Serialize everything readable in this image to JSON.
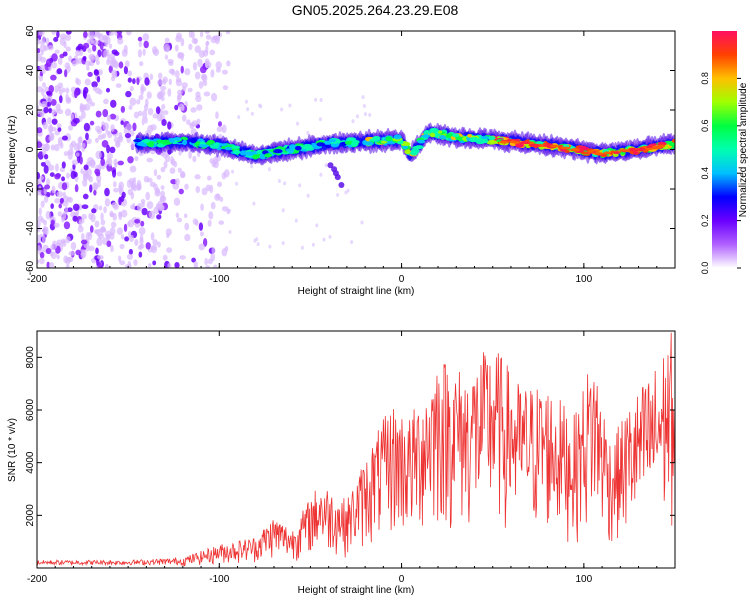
{
  "page": {
    "title": "GN05.2025.264.23.29.E08"
  },
  "chart_data": [
    {
      "type": "heatmap",
      "xlabel": "Height of straight line (km)",
      "ylabel": "Frequency (Hz)",
      "xlim": [
        -200,
        150
      ],
      "ylim": [
        -60,
        60
      ],
      "x_ticks": [
        -200,
        -100,
        0,
        100
      ],
      "y_ticks": [
        -60,
        -40,
        -20,
        0,
        20,
        40,
        60
      ],
      "colorbar": {
        "label": "Normalized spectral amplitude",
        "range": [
          0,
          1
        ],
        "ticks": [
          "0.0",
          "0.2",
          "0.4",
          "0.6",
          "0.8"
        ],
        "colors": [
          "#ffffff",
          "#b060ff",
          "#6a00ff",
          "#0000ff",
          "#00c0ff",
          "#00ffb0",
          "#00ff40",
          "#a0ff00",
          "#ffc000",
          "#ff4000",
          "#ff1060"
        ]
      },
      "ridge_frequency_hz": [
        {
          "x": -145,
          "f": 3
        },
        {
          "x": -120,
          "f": 4
        },
        {
          "x": -100,
          "f": 2
        },
        {
          "x": -80,
          "f": -3
        },
        {
          "x": -60,
          "f": 0
        },
        {
          "x": -40,
          "f": 3
        },
        {
          "x": -20,
          "f": 4
        },
        {
          "x": 0,
          "f": 5
        },
        {
          "x": 5,
          "f": -3
        },
        {
          "x": 15,
          "f": 9
        },
        {
          "x": 30,
          "f": 6
        },
        {
          "x": 50,
          "f": 5
        },
        {
          "x": 70,
          "f": 3
        },
        {
          "x": 90,
          "f": 1
        },
        {
          "x": 110,
          "f": -2
        },
        {
          "x": 130,
          "f": 0
        },
        {
          "x": 150,
          "f": 3
        }
      ],
      "noise_region_x": [
        -200,
        -95
      ]
    },
    {
      "type": "line",
      "xlabel": "Height of straight line (km)",
      "ylabel": "SNR (10 * v/v)",
      "xlim": [
        -200,
        150
      ],
      "ylim": [
        0,
        9000
      ],
      "x_ticks": [
        -200,
        -100,
        0,
        100
      ],
      "y_ticks": [
        2000,
        4000,
        6000,
        8000
      ],
      "series": [
        {
          "color": "#ee3333",
          "envelope": [
            {
              "x": -200,
              "y": 300
            },
            {
              "x": -150,
              "y": 300
            },
            {
              "x": -120,
              "y": 400
            },
            {
              "x": -100,
              "y": 900
            },
            {
              "x": -80,
              "y": 1200
            },
            {
              "x": -70,
              "y": 2000
            },
            {
              "x": -60,
              "y": 1500
            },
            {
              "x": -45,
              "y": 3300
            },
            {
              "x": -30,
              "y": 2600
            },
            {
              "x": -15,
              "y": 5000
            },
            {
              "x": -5,
              "y": 6300
            },
            {
              "x": 5,
              "y": 5800
            },
            {
              "x": 20,
              "y": 8200
            },
            {
              "x": 35,
              "y": 7500
            },
            {
              "x": 50,
              "y": 8600
            },
            {
              "x": 65,
              "y": 7000
            },
            {
              "x": 80,
              "y": 7000
            },
            {
              "x": 95,
              "y": 5800
            },
            {
              "x": 105,
              "y": 8300
            },
            {
              "x": 115,
              "y": 4800
            },
            {
              "x": 125,
              "y": 6300
            },
            {
              "x": 140,
              "y": 7800
            },
            {
              "x": 148,
              "y": 9000
            },
            {
              "x": 150,
              "y": 7500
            }
          ]
        }
      ]
    }
  ]
}
